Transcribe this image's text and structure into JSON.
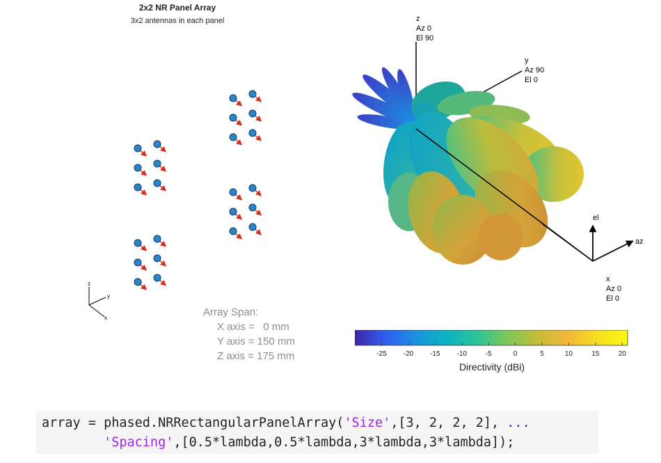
{
  "figure": {
    "title": "2x2 NR Panel Array",
    "subtitle": "3x2 antennas in each panel"
  },
  "array_span": {
    "heading": "Array Span:",
    "x_axis": "X axis =   0 mm",
    "y_axis": "Y axis = 150 mm",
    "z_axis": "Z axis = 175 mm"
  },
  "triad_left": {
    "z": "z",
    "y": "y",
    "x": "x"
  },
  "pattern_axes": {
    "z_label": [
      "z",
      "Az 0",
      "El 90"
    ],
    "y_label": [
      "y",
      "Az 90",
      "El 0"
    ],
    "x_label": [
      "x",
      "Az 0",
      "El 0"
    ],
    "el": "el",
    "az": "az"
  },
  "colorbar": {
    "label": "Directivity (dBi)",
    "ticks": [
      "-25",
      "-20",
      "-15",
      "-10",
      "-5",
      "0",
      "5",
      "10",
      "15",
      "20"
    ],
    "range": [
      -30,
      21
    ],
    "colors": [
      "#3e26a8",
      "#2f5cf2",
      "#1a91e0",
      "#0ab3c0",
      "#2cc29a",
      "#7bc75a",
      "#c3bc3a",
      "#f2b839",
      "#f5de22",
      "#f9fb0e"
    ]
  },
  "code": {
    "line1_prefix": "array = phased.NRRectangularPanelArray(",
    "line1_string": "'Size'",
    "line1_suffix": ",[3, 2, 2, 2], ",
    "line1_continuation": "...",
    "line2_string": "'Spacing'",
    "line2_suffix": ",[0.5*lambda,0.5*lambda,3*lambda,3*lambda]);"
  }
}
